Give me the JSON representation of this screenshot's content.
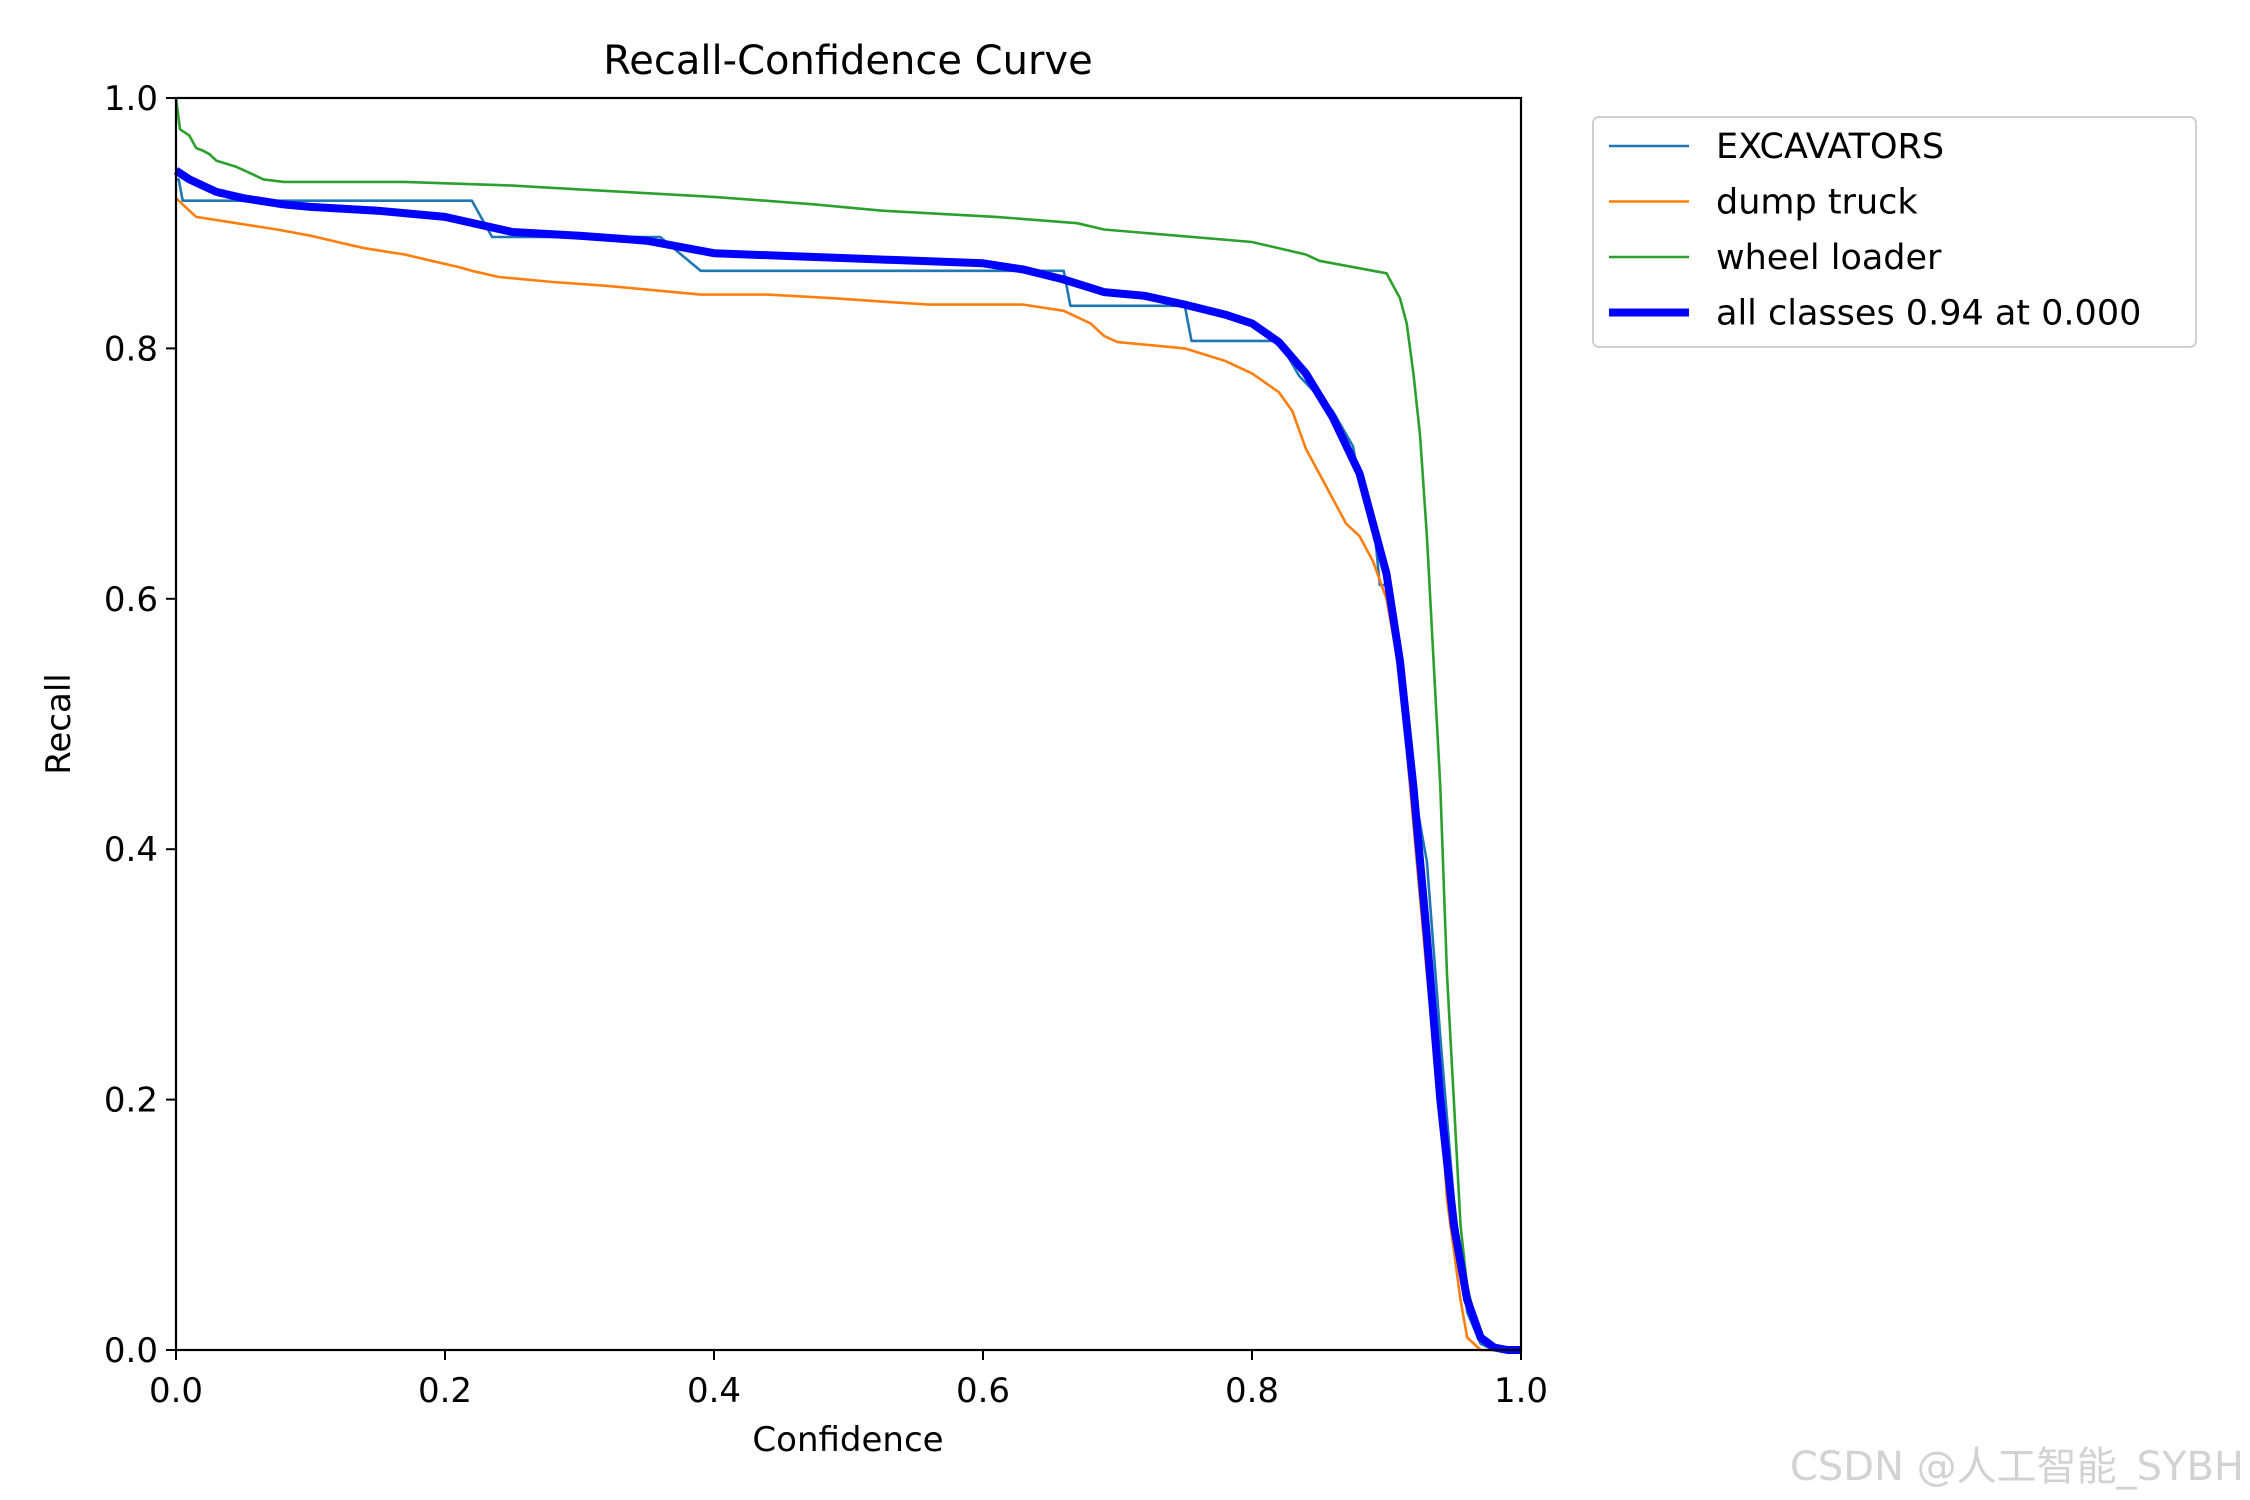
{
  "watermark": "CSDN @人工智能_SYBH",
  "chart_data": {
    "type": "line",
    "title": "Recall-Confidence Curve",
    "xlabel": "Confidence",
    "ylabel": "Recall",
    "xlim": [
      0,
      1
    ],
    "ylim": [
      0,
      1
    ],
    "xticks": [
      0.0,
      0.2,
      0.4,
      0.6,
      0.8,
      1.0
    ],
    "yticks": [
      0.0,
      0.2,
      0.4,
      0.6,
      0.8,
      1.0
    ],
    "xtick_labels": [
      "0.0",
      "0.2",
      "0.4",
      "0.6",
      "0.8",
      "1.0"
    ],
    "ytick_labels": [
      "0.0",
      "0.2",
      "0.4",
      "0.6",
      "0.8",
      "1.0"
    ],
    "grid": false,
    "legend_position": "outside-top-right",
    "series": [
      {
        "name": "EXCAVATORS",
        "color": "#1f77b4",
        "width": "thin",
        "x": [
          0.0,
          0.002,
          0.005,
          0.22,
          0.235,
          0.25,
          0.36,
          0.39,
          0.66,
          0.665,
          0.75,
          0.755,
          0.82,
          0.835,
          0.86,
          0.875,
          0.88,
          0.89,
          0.895,
          0.9,
          0.905,
          0.91,
          0.915,
          0.92,
          0.93,
          0.94,
          0.95,
          0.96,
          0.97,
          0.98,
          1.0
        ],
        "y": [
          0.935,
          0.935,
          0.918,
          0.918,
          0.889,
          0.889,
          0.889,
          0.862,
          0.862,
          0.834,
          0.834,
          0.806,
          0.806,
          0.778,
          0.75,
          0.722,
          0.694,
          0.667,
          0.611,
          0.611,
          0.583,
          0.55,
          0.5,
          0.45,
          0.39,
          0.25,
          0.12,
          0.03,
          0.005,
          0.0,
          0.0
        ]
      },
      {
        "name": "dump truck",
        "color": "#ff7f0e",
        "width": "thin",
        "x": [
          0.0,
          0.005,
          0.015,
          0.045,
          0.075,
          0.1,
          0.12,
          0.14,
          0.17,
          0.19,
          0.21,
          0.22,
          0.24,
          0.28,
          0.32,
          0.35,
          0.37,
          0.39,
          0.44,
          0.49,
          0.53,
          0.56,
          0.63,
          0.66,
          0.68,
          0.69,
          0.7,
          0.75,
          0.78,
          0.8,
          0.82,
          0.83,
          0.84,
          0.85,
          0.86,
          0.87,
          0.88,
          0.89,
          0.9,
          0.91,
          0.92,
          0.93,
          0.94,
          0.945,
          0.95,
          0.955,
          0.96,
          0.97,
          1.0
        ],
        "y": [
          0.92,
          0.915,
          0.905,
          0.9,
          0.895,
          0.89,
          0.885,
          0.88,
          0.875,
          0.87,
          0.865,
          0.862,
          0.857,
          0.853,
          0.85,
          0.847,
          0.845,
          0.843,
          0.843,
          0.84,
          0.837,
          0.835,
          0.835,
          0.83,
          0.82,
          0.81,
          0.805,
          0.8,
          0.79,
          0.78,
          0.765,
          0.75,
          0.72,
          0.7,
          0.68,
          0.66,
          0.65,
          0.63,
          0.6,
          0.54,
          0.42,
          0.3,
          0.2,
          0.12,
          0.08,
          0.04,
          0.01,
          0.0,
          0.0
        ]
      },
      {
        "name": "wheel loader",
        "color": "#2ca02c",
        "width": "thin",
        "x": [
          0.0,
          0.003,
          0.01,
          0.015,
          0.02,
          0.025,
          0.03,
          0.045,
          0.055,
          0.065,
          0.08,
          0.17,
          0.25,
          0.3,
          0.35,
          0.4,
          0.475,
          0.525,
          0.61,
          0.67,
          0.69,
          0.8,
          0.84,
          0.85,
          0.87,
          0.9,
          0.905,
          0.91,
          0.915,
          0.92,
          0.925,
          0.93,
          0.935,
          0.94,
          0.945,
          0.95,
          0.955,
          0.96,
          0.97,
          0.98,
          1.0
        ],
        "y": [
          1.0,
          0.975,
          0.97,
          0.96,
          0.958,
          0.955,
          0.95,
          0.945,
          0.94,
          0.935,
          0.933,
          0.933,
          0.93,
          0.927,
          0.924,
          0.921,
          0.915,
          0.91,
          0.905,
          0.9,
          0.895,
          0.885,
          0.875,
          0.87,
          0.866,
          0.86,
          0.85,
          0.84,
          0.82,
          0.78,
          0.73,
          0.65,
          0.55,
          0.45,
          0.3,
          0.2,
          0.1,
          0.05,
          0.01,
          0.0,
          0.0
        ]
      },
      {
        "name": "all classes 0.94 at 0.000",
        "color": "#0000ff",
        "width": "thick",
        "x": [
          0.0,
          0.01,
          0.03,
          0.05,
          0.08,
          0.1,
          0.15,
          0.2,
          0.25,
          0.3,
          0.35,
          0.38,
          0.4,
          0.45,
          0.5,
          0.55,
          0.6,
          0.63,
          0.66,
          0.69,
          0.72,
          0.75,
          0.78,
          0.8,
          0.82,
          0.84,
          0.86,
          0.88,
          0.9,
          0.91,
          0.92,
          0.93,
          0.94,
          0.95,
          0.96,
          0.97,
          0.98,
          0.99,
          1.0
        ],
        "y": [
          0.942,
          0.935,
          0.925,
          0.92,
          0.915,
          0.913,
          0.91,
          0.905,
          0.893,
          0.89,
          0.886,
          0.88,
          0.876,
          0.874,
          0.872,
          0.87,
          0.868,
          0.863,
          0.855,
          0.845,
          0.842,
          0.835,
          0.827,
          0.82,
          0.805,
          0.78,
          0.745,
          0.7,
          0.62,
          0.55,
          0.45,
          0.33,
          0.2,
          0.1,
          0.04,
          0.01,
          0.002,
          0.0,
          0.0
        ]
      }
    ]
  }
}
